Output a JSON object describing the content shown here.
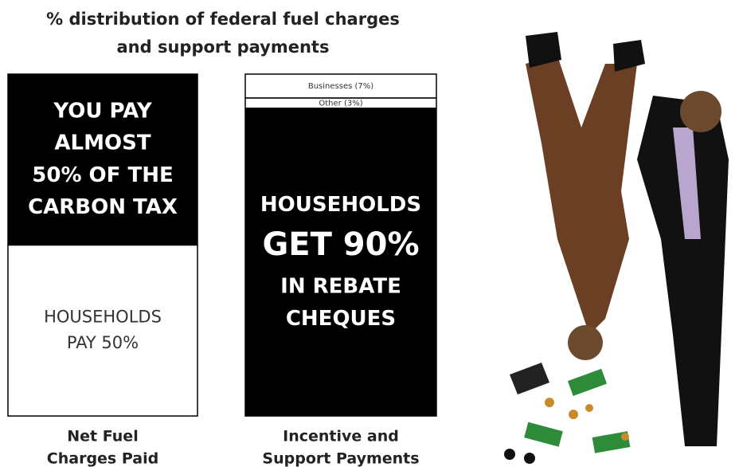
{
  "title": [
    "% distribution of federal fuel charges",
    "and support payments"
  ],
  "bars": [
    {
      "label": [
        "Net Fuel",
        "Charges Paid"
      ],
      "segments": [
        {
          "value": 50,
          "color": "#000000",
          "text": [
            "YOU PAY",
            "ALMOST",
            "50% OF THE",
            "CARBON TAX"
          ]
        },
        {
          "value": 50,
          "color": "#ffffff",
          "text": [
            "HOUSEHOLDS",
            "PAY 50%"
          ]
        }
      ]
    },
    {
      "label": [
        "Incentive and",
        "Support Payments"
      ],
      "segments": [
        {
          "value": 7,
          "color": "#ffffff",
          "text": [
            "Businesses (7%)"
          ]
        },
        {
          "value": 3,
          "color": "#ffffff",
          "text": [
            "Other (3%)"
          ]
        },
        {
          "value": 90,
          "color": "#000000",
          "text": [
            "HOUSEHOLDS",
            "GET 90%",
            "IN REBATE",
            "CHEQUES"
          ]
        }
      ]
    }
  ]
}
